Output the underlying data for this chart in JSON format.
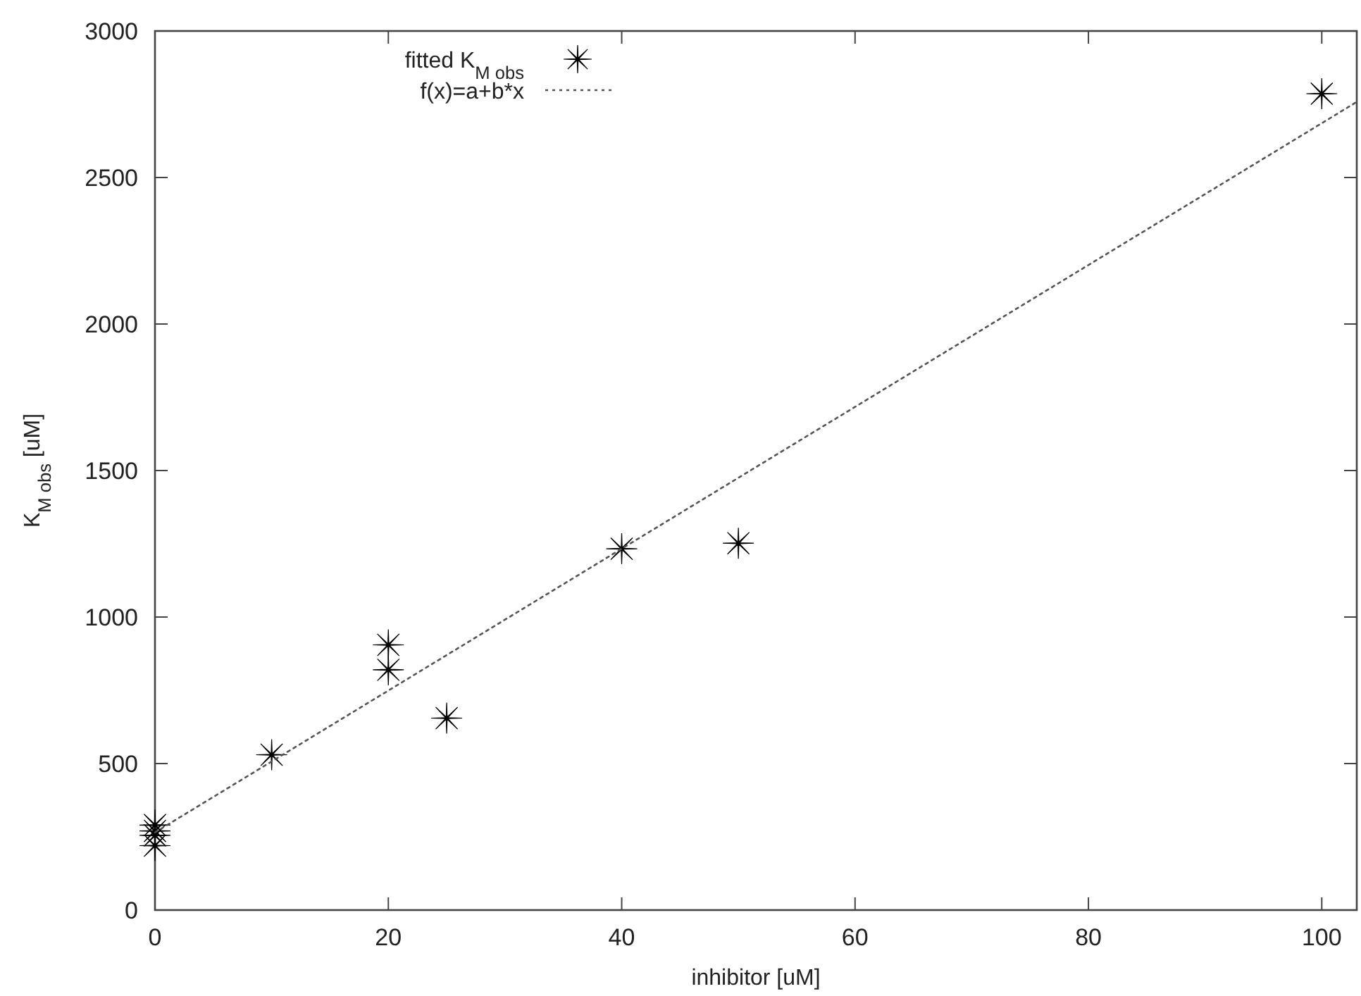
{
  "chart_data": {
    "type": "scatter",
    "xlabel": "inhibitor [uM]",
    "ylabel": "K$_{M obs}$ [uM]",
    "xlim": [
      0,
      103
    ],
    "ylim": [
      0,
      3000
    ],
    "xticks": [
      0,
      20,
      40,
      60,
      80,
      100
    ],
    "yticks": [
      0,
      500,
      1000,
      1500,
      2000,
      2500,
      3000
    ],
    "grid": false,
    "legend": "top left",
    "marker": "star",
    "series": [
      {
        "name": "fitted K$_{M obs}$",
        "color": "#000000",
        "x": [
          0,
          0,
          0,
          0,
          10,
          20,
          20,
          25,
          40,
          50,
          100
        ],
        "values": [
          290,
          270,
          255,
          220,
          530,
          905,
          820,
          655,
          1233,
          1252,
          2786
        ]
      },
      {
        "name": "f(x)=a+b*x",
        "type": "line",
        "color": "#555555",
        "line_style": "dotted",
        "marker": "none",
        "x": [
          0,
          103
        ],
        "values": [
          265,
          2758
        ]
      }
    ]
  }
}
